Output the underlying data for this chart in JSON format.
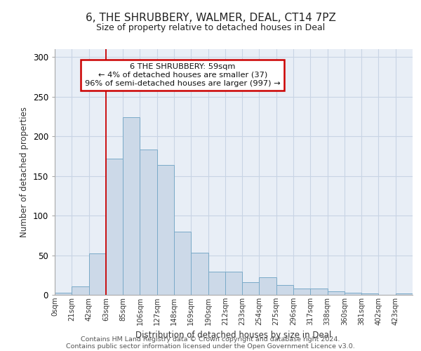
{
  "title": "6, THE SHRUBBERY, WALMER, DEAL, CT14 7PZ",
  "subtitle": "Size of property relative to detached houses in Deal",
  "xlabel": "Distribution of detached houses by size in Deal",
  "ylabel": "Number of detached properties",
  "bar_labels": [
    "0sqm",
    "21sqm",
    "42sqm",
    "63sqm",
    "85sqm",
    "106sqm",
    "127sqm",
    "148sqm",
    "169sqm",
    "190sqm",
    "212sqm",
    "233sqm",
    "254sqm",
    "275sqm",
    "296sqm",
    "317sqm",
    "338sqm",
    "360sqm",
    "381sqm",
    "402sqm",
    "423sqm"
  ],
  "bar_values": [
    3,
    11,
    52,
    172,
    224,
    183,
    164,
    80,
    53,
    29,
    29,
    16,
    22,
    12,
    8,
    8,
    4,
    3,
    2,
    0,
    2
  ],
  "bar_color": "#ccd9e8",
  "bar_edge_color": "#7aaac8",
  "grid_color": "#c8d4e4",
  "background_color": "#e8eef6",
  "vline_x": 3,
  "vline_color": "#cc0000",
  "annotation_text": "6 THE SHRUBBERY: 59sqm\n← 4% of detached houses are smaller (37)\n96% of semi-detached houses are larger (997) →",
  "annotation_box_color": "#ffffff",
  "annotation_box_edge": "#cc0000",
  "ylim": [
    0,
    310
  ],
  "yticks": [
    0,
    50,
    100,
    150,
    200,
    250,
    300
  ],
  "footer1": "Contains HM Land Registry data © Crown copyright and database right 2024.",
  "footer2": "Contains public sector information licensed under the Open Government Licence v3.0."
}
